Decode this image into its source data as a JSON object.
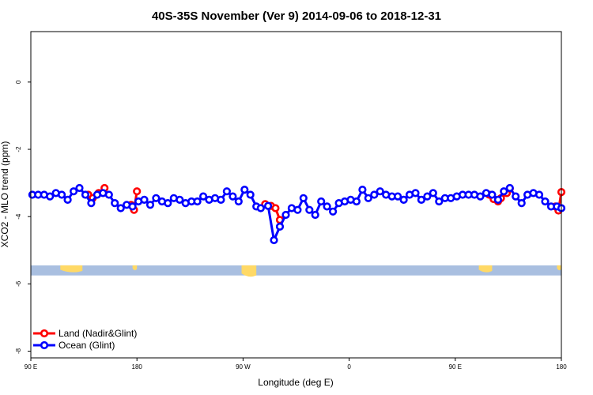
{
  "chart_data": {
    "type": "line",
    "title": "40S-35S November (Ver 9)   2014-09-06 to 2018-12-31",
    "xlabel": "Longitude (deg E)",
    "ylabel": "XCO2 - MLO trend (ppm)",
    "xlim": [
      90,
      450
    ],
    "ylim": [
      -8.2,
      1.5
    ],
    "x_ticks": [
      {
        "value": 90,
        "label": "90 E"
      },
      {
        "value": 162,
        "label": "180"
      },
      {
        "value": 234,
        "label": "90 W"
      },
      {
        "value": 306,
        "label": "0"
      },
      {
        "value": 378,
        "label": "90 E"
      },
      {
        "value": 450,
        "label": "180"
      }
    ],
    "y_ticks": [
      {
        "value": 0,
        "label": "0"
      },
      {
        "value": -2,
        "label": "-2"
      },
      {
        "value": -4,
        "label": "-4"
      },
      {
        "value": -6,
        "label": "-6"
      },
      {
        "value": -8,
        "label": "-8"
      }
    ],
    "map_strip": {
      "ymin": -5.75,
      "ymax": -5.45,
      "ocean_color": "#a9bfe0",
      "land_color": "#ffd966"
    },
    "legend": {
      "position": "bottom-left"
    },
    "series": [
      {
        "name": "Land (Nadir&Glint)",
        "color": "#ff0000",
        "segments": [
          {
            "x": [
              129,
              132,
              136,
              140
            ],
            "y": [
              -3.35,
              -3.45,
              -3.3,
              -3.15
            ]
          },
          {
            "x": [
              158,
              160,
              162
            ],
            "y": [
              -3.65,
              -3.8,
              -3.25
            ]
          },
          {
            "x": [
              249,
              253,
              256,
              259
            ],
            "y": [
              -3.63,
              -3.68,
              -3.75,
              -4.1
            ]
          },
          {
            "x": [
              401,
              404,
              407,
              409,
              413,
              415
            ],
            "y": [
              -3.35,
              -3.48,
              -3.55,
              -3.45,
              -3.3,
              -3.17
            ]
          },
          {
            "x": [
              446,
              448,
              450
            ],
            "y": [
              -3.7,
              -3.82,
              -3.27
            ]
          }
        ]
      },
      {
        "name": "Ocean (Glint)",
        "color": "#0000ff",
        "x": [
          91,
          95,
          99,
          103,
          107,
          111,
          115,
          119,
          123,
          127,
          131,
          135,
          139,
          143,
          147,
          151,
          155,
          159,
          163,
          167,
          171,
          175,
          179,
          183,
          187,
          191,
          195,
          199,
          203,
          207,
          211,
          215,
          219,
          223,
          227,
          231,
          235,
          239,
          243,
          246,
          251,
          255,
          259,
          263,
          267,
          271,
          275,
          279,
          283,
          287,
          291,
          295,
          299,
          303,
          307,
          311,
          315,
          319,
          323,
          327,
          331,
          335,
          339,
          343,
          347,
          351,
          355,
          359,
          363,
          367,
          371,
          375,
          379,
          383,
          387,
          391,
          395,
          399,
          403,
          407,
          411,
          415,
          419,
          423,
          427,
          431,
          435,
          439,
          443,
          447,
          450
        ],
        "y": [
          -3.35,
          -3.35,
          -3.35,
          -3.4,
          -3.3,
          -3.35,
          -3.5,
          -3.25,
          -3.15,
          -3.35,
          -3.6,
          -3.35,
          -3.3,
          -3.35,
          -3.6,
          -3.75,
          -3.65,
          -3.7,
          -3.55,
          -3.5,
          -3.65,
          -3.45,
          -3.55,
          -3.6,
          -3.45,
          -3.5,
          -3.6,
          -3.55,
          -3.55,
          -3.4,
          -3.5,
          -3.45,
          -3.5,
          -3.25,
          -3.4,
          -3.55,
          -3.2,
          -3.35,
          -3.7,
          -3.75,
          -3.68,
          -4.7,
          -4.3,
          -3.95,
          -3.75,
          -3.8,
          -3.45,
          -3.8,
          -3.95,
          -3.55,
          -3.7,
          -3.85,
          -3.6,
          -3.55,
          -3.5,
          -3.55,
          -3.2,
          -3.45,
          -3.35,
          -3.25,
          -3.35,
          -3.4,
          -3.4,
          -3.5,
          -3.35,
          -3.3,
          -3.5,
          -3.4,
          -3.3,
          -3.55,
          -3.45,
          -3.45,
          -3.4,
          -3.35,
          -3.35,
          -3.35,
          -3.4,
          -3.3,
          -3.35,
          -3.5,
          -3.25,
          -3.15,
          -3.4,
          -3.6,
          -3.35,
          -3.3,
          -3.35,
          -3.55,
          -3.7,
          -3.7,
          -3.75
        ]
      }
    ]
  }
}
